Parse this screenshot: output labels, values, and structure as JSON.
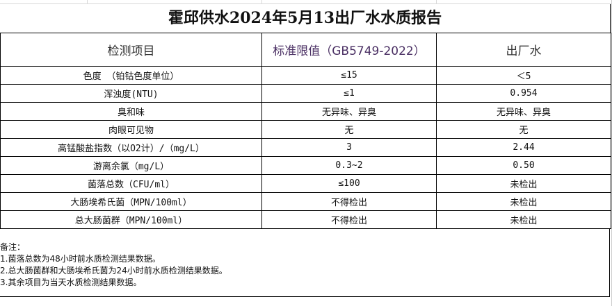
{
  "title": "霍邱供水2024年5月13出厂水水质报告",
  "headers": [
    "检测项目",
    "标准限值（GB5749-2022）",
    "出厂水"
  ],
  "rows": [
    [
      "色度 （铂钴色度单位）",
      "≤15",
      "＜5"
    ],
    [
      "浑浊度(NTU)",
      "≤1",
      "0.954"
    ],
    [
      "臭和味",
      "无异味、异臭",
      "无异味、异臭"
    ],
    [
      "肉眼可见物",
      "无",
      "无"
    ],
    [
      "高锰酸盐指数（以O2计）/（mg/L）",
      "3",
      "2.44"
    ],
    [
      "游离余氯（mg/L）",
      "0.3~2",
      "0.50"
    ],
    [
      "菌落总数（CFU/ml）",
      "≤100",
      "未检出"
    ],
    [
      "大肠埃希氏菌（MPN/100ml）",
      "不得检出",
      "未检出"
    ],
    [
      "总大肠菌群（MPN/100ml）",
      "不得检出",
      "未检出"
    ]
  ],
  "notes": [
    "备注：",
    "1.菌落总数为48小时前水质检测结果数据。",
    "2.总大肠菌群和大肠埃希氏菌为24小时前水质检测结果数据。",
    "3.其余项目为当天水质检测结果数据。"
  ]
}
